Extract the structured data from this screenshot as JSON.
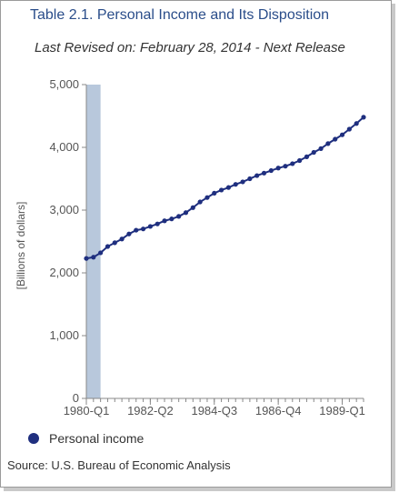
{
  "header": {
    "title": "Table 2.1. Personal Income and Its Disposition",
    "subtitle": "Last Revised on: February 28, 2014 - Next Release"
  },
  "source": "Source: U.S. Bureau of Economic Analysis",
  "colors": {
    "series": "#1f2f7f",
    "recession_band": "#b8c8dc",
    "axis": "#888888",
    "title": "#2a4d8a"
  },
  "chart_data": {
    "type": "line",
    "title": "Table 2.1. Personal Income and Its Disposition",
    "ylabel": "[Billions of dollars]",
    "xlabel": "",
    "ylim": [
      0,
      5000
    ],
    "y_ticks": [
      "0",
      "1,000",
      "2,000",
      "3,000",
      "4,000",
      "5,000"
    ],
    "y_tick_values": [
      0,
      1000,
      2000,
      3000,
      4000,
      5000
    ],
    "x_tick_labels": [
      "1980-Q1",
      "1982-Q2",
      "1984-Q3",
      "1986-Q4",
      "1989-Q1"
    ],
    "grid": false,
    "legend_position": "bottom-left",
    "shaded_period": [
      "1980-Q1",
      "1980-Q3"
    ],
    "x": [
      "1980-Q1",
      "1980-Q2",
      "1980-Q3",
      "1980-Q4",
      "1981-Q1",
      "1981-Q2",
      "1981-Q3",
      "1981-Q4",
      "1982-Q1",
      "1982-Q2",
      "1982-Q3",
      "1982-Q4",
      "1983-Q1",
      "1983-Q2",
      "1983-Q3",
      "1983-Q4",
      "1984-Q1",
      "1984-Q2",
      "1984-Q3",
      "1984-Q4",
      "1985-Q1",
      "1985-Q2",
      "1985-Q3",
      "1985-Q4",
      "1986-Q1",
      "1986-Q2",
      "1986-Q3",
      "1986-Q4",
      "1987-Q1",
      "1987-Q2",
      "1987-Q3",
      "1987-Q4",
      "1988-Q1",
      "1988-Q2",
      "1988-Q3",
      "1988-Q4",
      "1989-Q1",
      "1989-Q2",
      "1989-Q3",
      "1989-Q4"
    ],
    "series": [
      {
        "name": "Personal income",
        "values": [
          2230,
          2250,
          2320,
          2420,
          2480,
          2540,
          2620,
          2680,
          2700,
          2740,
          2780,
          2830,
          2860,
          2900,
          2960,
          3040,
          3130,
          3200,
          3270,
          3320,
          3360,
          3410,
          3450,
          3500,
          3550,
          3590,
          3630,
          3670,
          3700,
          3740,
          3790,
          3850,
          3920,
          3980,
          4060,
          4130,
          4200,
          4290,
          4380,
          4480
        ]
      }
    ]
  }
}
